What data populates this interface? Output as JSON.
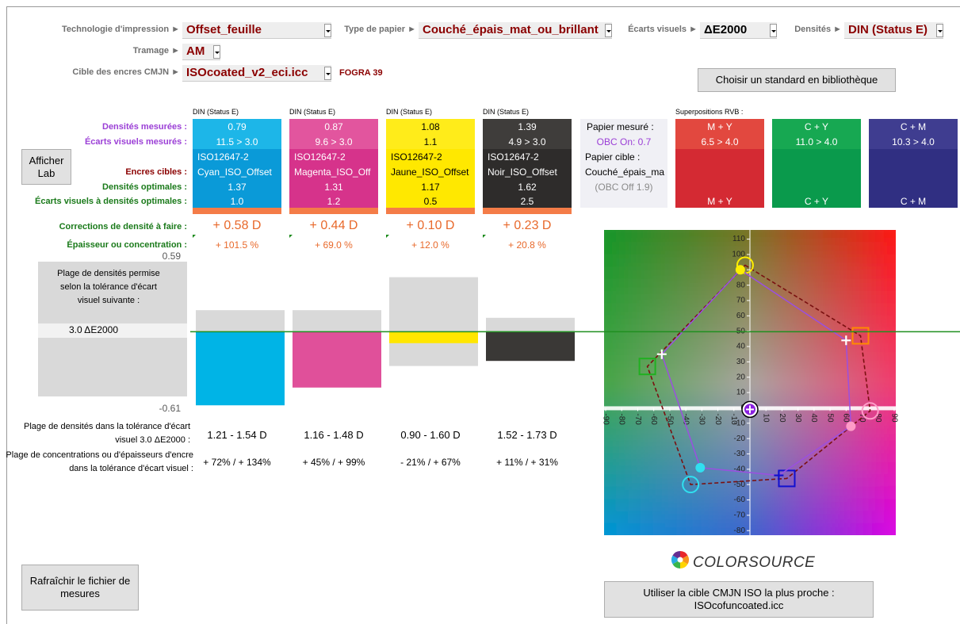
{
  "controls": [
    {
      "label": "Technologie d'impression ►",
      "value": "Offset_feuille"
    },
    {
      "label": "Type de papier ►",
      "value": "Couché_épais_mat_ou_brillant"
    },
    {
      "label": "Écarts visuels ►",
      "value": "ΔE2000"
    },
    {
      "label": "Densités ►",
      "value": "DIN (Status E)"
    },
    {
      "label": "Tramage ►",
      "value": "AM"
    },
    {
      "label": "Cible des encres CMJN ►",
      "value": "ISOcoated_v2_eci.icc"
    }
  ],
  "fogra": "FOGRA 39",
  "buttons": {
    "library": "Choisir un standard en bibliothèque",
    "lab": "Afficher Lab",
    "refresh": "Rafraîchir le fichier de mesures",
    "nearest": [
      "Utiliser la cible CMJN ISO la plus proche :",
      "ISOcofuncoated.icc"
    ]
  },
  "row_labels": {
    "density": "Densités mesurées :",
    "delta": "Écarts visuels mesurés :",
    "target": "Encres cibles :",
    "optimal": "Densités optimales :",
    "delta_optimal": "Écarts visuels à densités optimales :",
    "correction": "Corrections de densité à faire :",
    "thickness": "Épaisseur ou concentration :"
  },
  "inks": [
    {
      "header": "DIN (Status E)",
      "density": "0.79",
      "delta": "11.5 > 3.0",
      "standard": "ISO12647-2",
      "target": "Cyan_ISO_Offset",
      "optimal": "1.37",
      "delta_optimal": "1.0",
      "correction": "+ 0.58 D",
      "thickness": "+ 101.5 %",
      "range": "1.21 - 1.54 D",
      "concentration": "+ 72% / + 134%"
    },
    {
      "header": "DIN (Status E)",
      "density": "0.87",
      "delta": "9.6 > 3.0",
      "standard": "ISO12647-2",
      "target": "Magenta_ISO_Off",
      "optimal": "1.31",
      "delta_optimal": "1.2",
      "correction": "+ 0.44 D",
      "thickness": "+ 69.0 %",
      "range": "1.16 - 1.48 D",
      "concentration": "+ 45% / + 99%"
    },
    {
      "header": "DIN (Status E)",
      "density": "1.08",
      "delta": "1.1",
      "standard": "ISO12647-2",
      "target": "Jaune_ISO_Offset",
      "optimal": "1.17",
      "delta_optimal": "0.5",
      "correction": "+ 0.10 D",
      "thickness": "+ 12.0 %",
      "range": "0.90 - 1.60 D",
      "concentration": "- 21% / + 67%"
    },
    {
      "header": "DIN (Status E)",
      "density": "1.39",
      "delta": "4.9 > 3.0",
      "standard": "ISO12647-2",
      "target": "Noir_ISO_Offset",
      "optimal": "1.62",
      "delta_optimal": "2.5",
      "correction": "+ 0.23 D",
      "thickness": "+ 20.8 %",
      "range": "1.52 - 1.73 D",
      "concentration": "+ 11% / + 31%"
    }
  ],
  "paper": {
    "measured_label": "Papier mesuré :",
    "measured": "OBC On: 0.7",
    "target_label": "Papier cible :",
    "target": "Couché_épais_ma",
    "target_obc": "(OBC Off 1.9)"
  },
  "overprints": {
    "header": "Superpositions RVB :",
    "items": [
      {
        "name": "M + Y",
        "delta": "6.5 > 4.0",
        "label": "M + Y"
      },
      {
        "name": "C + Y",
        "delta": "11.0 > 4.0",
        "label": "C + Y"
      },
      {
        "name": "C + M",
        "delta": "10.3 > 4.0",
        "label": "C + M"
      }
    ]
  },
  "tolerance": {
    "text": "Plage de densités permise selon la tolérance d'écart visuel suivante :",
    "value": "3.0 ΔE2000"
  },
  "range_labels": {
    "density": "Plage de densités dans la tolérance d'écart visuel 3.0 ΔE2000 :",
    "concentration": "Plage de concentrations ou d'épaisseurs d'encre dans la tolérance d'écart visuel :"
  },
  "logo": "COLORSOURCE",
  "chart_data": [
    {
      "type": "bar",
      "values": [
        -0.58,
        -0.44,
        -0.09,
        -0.23
      ],
      "range_low": [
        -0.16,
        -0.15,
        -0.27,
        -0.1
      ],
      "range_high": [
        0.17,
        0.17,
        0.43,
        0.11
      ],
      "colors": [
        "#00b4e6",
        "#e0509a",
        "#ffe600",
        "#3a3836"
      ],
      "range_color": "#d9d9d9",
      "zero_line_color": "#1f8f1f",
      "ylim": [
        -0.61,
        0.59
      ],
      "yticks": [
        0.59,
        0.39,
        0.19,
        -0.01,
        -0.21,
        -0.41,
        -0.61
      ]
    },
    {
      "type": "scatter",
      "xlim": [
        -91,
        91
      ],
      "ylim": [
        -83,
        116
      ],
      "xticks": [
        -90,
        -80,
        -70,
        -60,
        -50,
        -40,
        -30,
        -20,
        -10,
        0,
        10,
        20,
        30,
        40,
        50,
        60,
        70,
        80,
        90
      ],
      "yticks": [
        -80,
        -70,
        -60,
        -50,
        -40,
        -30,
        -20,
        -10,
        0,
        10,
        20,
        30,
        40,
        50,
        60,
        70,
        80,
        90,
        100,
        110
      ],
      "series": [
        {
          "color": "#7a1010",
          "dashed": true,
          "polygon": true,
          "x": [
            -3,
            69,
            75,
            23,
            -37,
            -64
          ],
          "values": [
            93,
            47,
            -2,
            -46,
            -50,
            27
          ],
          "point_colors": [
            "#ffee00",
            "#ff8a00",
            "#ff9cc8",
            "#1010d0",
            "#30e0f0",
            "#20b020"
          ],
          "markers": [
            "circle",
            "square",
            "circle",
            "square",
            "circle",
            "square"
          ]
        },
        {
          "color": "#9a50e0",
          "dashed": false,
          "polygon": true,
          "x": [
            -6,
            60,
            63,
            18,
            -31,
            -55
          ],
          "values": [
            90,
            44,
            -12,
            -44,
            -39,
            35
          ],
          "point_colors": [
            "#ffee00",
            "#ffffff",
            "#ff9cc8",
            "#1010d0",
            "#30e0f0",
            "#ffffff"
          ],
          "markers": [
            "dot",
            "cross",
            "dot",
            "cross",
            "dot",
            "cross"
          ]
        },
        {
          "color": "#8a20e0",
          "dashed": false,
          "polygon": false,
          "x": [
            0
          ],
          "values": [
            -1
          ],
          "point_colors": [
            "#8a20e0"
          ],
          "markers": [
            "paper"
          ]
        }
      ]
    }
  ]
}
